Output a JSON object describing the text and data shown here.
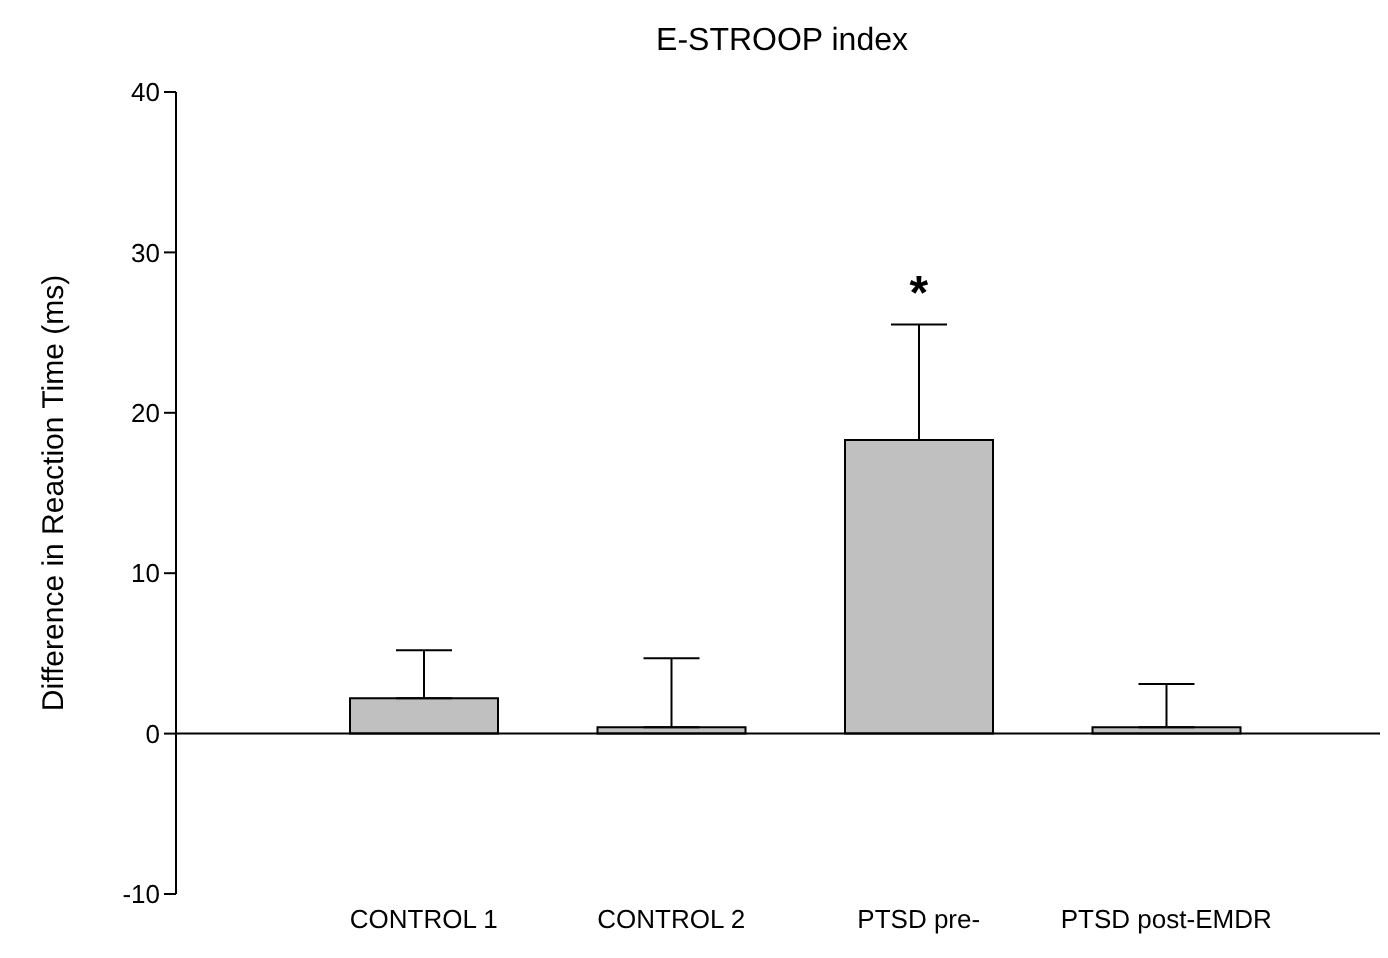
{
  "chart_data": {
    "type": "bar",
    "title": "E-STROOP index",
    "ylabel": "Difference in Reaction Time (ms)",
    "categories": [
      "CONTROL 1",
      "CONTROL 2",
      "PTSD pre-",
      "PTSD post-EMDR"
    ],
    "values": [
      2.2,
      0.4,
      18.3,
      0.4
    ],
    "errors": [
      [
        2.2,
        5.2
      ],
      [
        0.4,
        4.7
      ],
      [
        18.3,
        25.5
      ],
      [
        0.4,
        3.1
      ]
    ],
    "ref_lines": [
      {
        "axis": "y",
        "value": 0,
        "color": "#000000"
      }
    ],
    "color": "#c0c0c0",
    "ylim": [
      -10,
      40
    ],
    "yticks": [
      -10,
      0,
      10,
      20,
      30,
      40
    ],
    "grid": false,
    "annotations": [
      "*"
    ]
  }
}
